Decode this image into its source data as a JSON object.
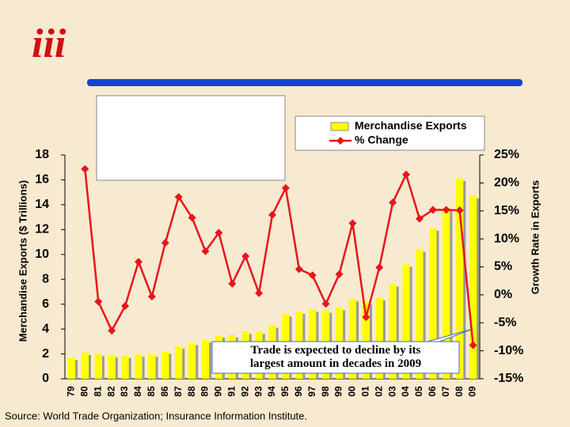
{
  "logo": "iii",
  "chart_data": {
    "type": "bar-line",
    "categories": [
      "79",
      "80",
      "81",
      "82",
      "83",
      "84",
      "85",
      "86",
      "87",
      "88",
      "89",
      "90",
      "91",
      "92",
      "93",
      "94",
      "95",
      "96",
      "97",
      "98",
      "99",
      "00",
      "01",
      "02",
      "03",
      "04",
      "05",
      "06",
      "07",
      "08",
      "09"
    ],
    "series": [
      {
        "name": "Merchandise Exports",
        "color": "#ffff00",
        "type": "bar",
        "values": [
          1.7,
          2.1,
          2.0,
          1.9,
          1.85,
          1.95,
          1.95,
          2.2,
          2.6,
          2.9,
          3.1,
          3.5,
          3.5,
          3.8,
          3.8,
          4.3,
          5.2,
          5.4,
          5.6,
          5.5,
          5.7,
          6.4,
          6.2,
          6.5,
          7.6,
          9.2,
          10.4,
          12.1,
          13.8,
          16.1,
          14.7
        ]
      },
      {
        "name": "% Change",
        "color": "#e8141c",
        "type": "line",
        "axis": "y2",
        "values": [
          null,
          22.5,
          -1.2,
          -6.4,
          -2.0,
          5.9,
          -0.3,
          9.3,
          17.5,
          13.8,
          7.8,
          11.1,
          2.0,
          6.9,
          0.3,
          14.3,
          19.1,
          4.6,
          3.5,
          -1.6,
          3.7,
          12.8,
          -4.0,
          4.9,
          16.5,
          21.5,
          13.6,
          15.2,
          15.2,
          15.1,
          -9.0
        ]
      }
    ],
    "ylabel": "Merchandise Exports ($ Trillions)",
    "y2label": "Growth Rate in Exports",
    "ylim": [
      0,
      18
    ],
    "yticks": [
      0,
      2,
      4,
      6,
      8,
      10,
      12,
      14,
      16,
      18
    ],
    "y2lim": [
      -15,
      25
    ],
    "y2ticks": [
      {
        "value": 25,
        "label": "25%"
      },
      {
        "value": 20,
        "label": "20%"
      },
      {
        "value": 15,
        "label": "15%"
      },
      {
        "value": 10,
        "label": "10%"
      },
      {
        "value": 5,
        "label": "5%"
      },
      {
        "value": 0,
        "label": "0%"
      },
      {
        "value": -5,
        "label": "-5%"
      },
      {
        "value": -10,
        "label": "-10%"
      },
      {
        "value": -15,
        "label": "-15%"
      }
    ],
    "annotation": "Trade is expected to decline by its largest amount in decades in 2009",
    "source": "Source: World Trade Organization; Insurance Information Institute."
  }
}
